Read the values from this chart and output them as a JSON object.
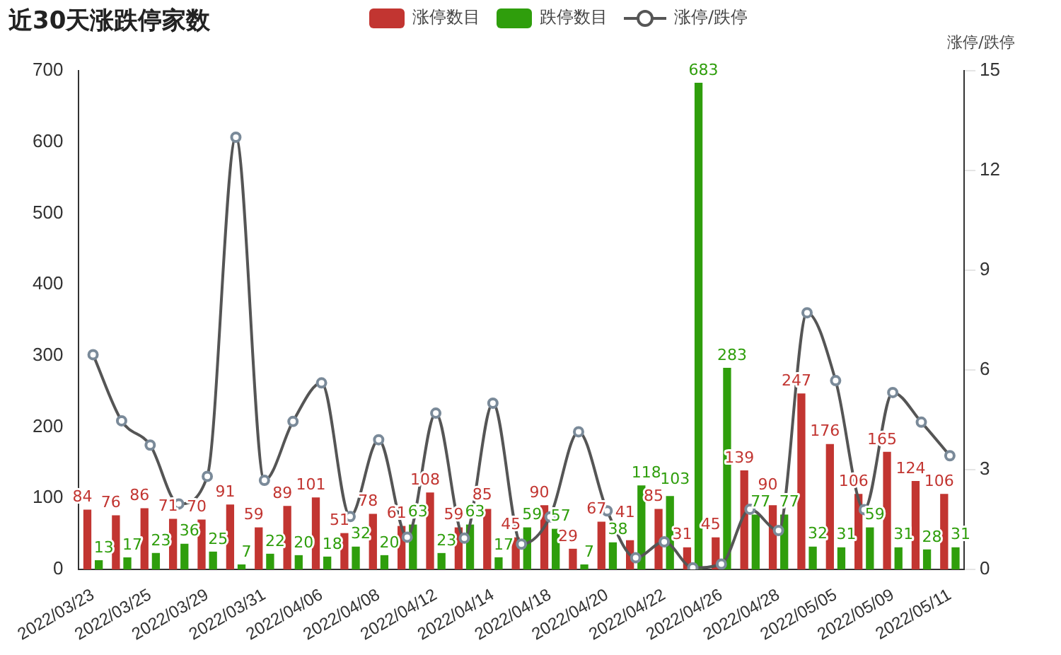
{
  "chart_data": {
    "type": "bar",
    "title": "近30天涨跌停家数",
    "y2label": "涨停/跌停",
    "categories": [
      "2022/03/23",
      null,
      "2022/03/25",
      null,
      "2022/03/29",
      null,
      "2022/03/31",
      null,
      "2022/04/06",
      null,
      "2022/04/08",
      null,
      "2022/04/12",
      null,
      "2022/04/14",
      null,
      "2022/04/18",
      null,
      "2022/04/20",
      null,
      "2022/04/22",
      null,
      "2022/04/26",
      null,
      "2022/04/28",
      null,
      "2022/05/05",
      null,
      "2022/05/09",
      null,
      "2022/05/11"
    ],
    "series": [
      {
        "name": "涨停数目",
        "color": "#c23531",
        "values": [
          84,
          76,
          86,
          71,
          70,
          91,
          59,
          89,
          101,
          51,
          78,
          61,
          108,
          59,
          85,
          45,
          90,
          29,
          67,
          41,
          85,
          31,
          45,
          139,
          90,
          247,
          176,
          106,
          165,
          124,
          106
        ],
        "value_labels": [
          "84",
          "76",
          "86",
          "71",
          "70",
          "91",
          "59",
          "89",
          "101",
          "51",
          "78",
          "61",
          "108",
          "59",
          "85",
          "45",
          "90",
          "29",
          "67",
          "41",
          "85",
          "31",
          "45",
          "139",
          "90",
          "247",
          "176",
          "106",
          "165",
          "124",
          "106"
        ]
      },
      {
        "name": "跌停数目",
        "color": "#2f9e0c",
        "values": [
          13,
          17,
          23,
          36,
          25,
          7,
          22,
          20,
          18,
          32,
          20,
          63,
          23,
          63,
          17,
          59,
          57,
          7,
          38,
          118,
          103,
          683,
          283,
          77,
          77,
          32,
          31,
          59,
          31,
          28,
          31
        ],
        "value_labels": [
          "13",
          "17",
          "23",
          "36",
          "25",
          "7",
          "22",
          "20",
          "18",
          "32",
          "20",
          "63",
          "23",
          "63",
          "17",
          "59",
          "57",
          "7",
          "38",
          "118",
          "103",
          "683",
          "283",
          "77",
          "77",
          "32",
          "31",
          "59",
          "31",
          "28",
          "31"
        ]
      },
      {
        "name": "涨停/跌停",
        "type": "line",
        "axis": "y2",
        "color": "#555555",
        "values": [
          6.46,
          4.47,
          3.74,
          1.97,
          2.8,
          13,
          2.68,
          4.45,
          5.61,
          1.59,
          3.9,
          0.97,
          4.7,
          0.94,
          5,
          0.76,
          1.58,
          4.14,
          1.76,
          0.35,
          0.83,
          0.05,
          0.16,
          1.81,
          1.17,
          7.72,
          5.68,
          1.8,
          5.32,
          4.43,
          3.42
        ]
      }
    ],
    "ylim": [
      0,
      700
    ],
    "yticks": [
      0,
      100,
      200,
      300,
      400,
      500,
      600,
      700
    ],
    "y2lim": [
      0,
      15
    ],
    "y2ticks": [
      0,
      3,
      6,
      9,
      12,
      15
    ],
    "grid": false,
    "legend": "top",
    "marker": "circle",
    "line_style": "solid"
  }
}
